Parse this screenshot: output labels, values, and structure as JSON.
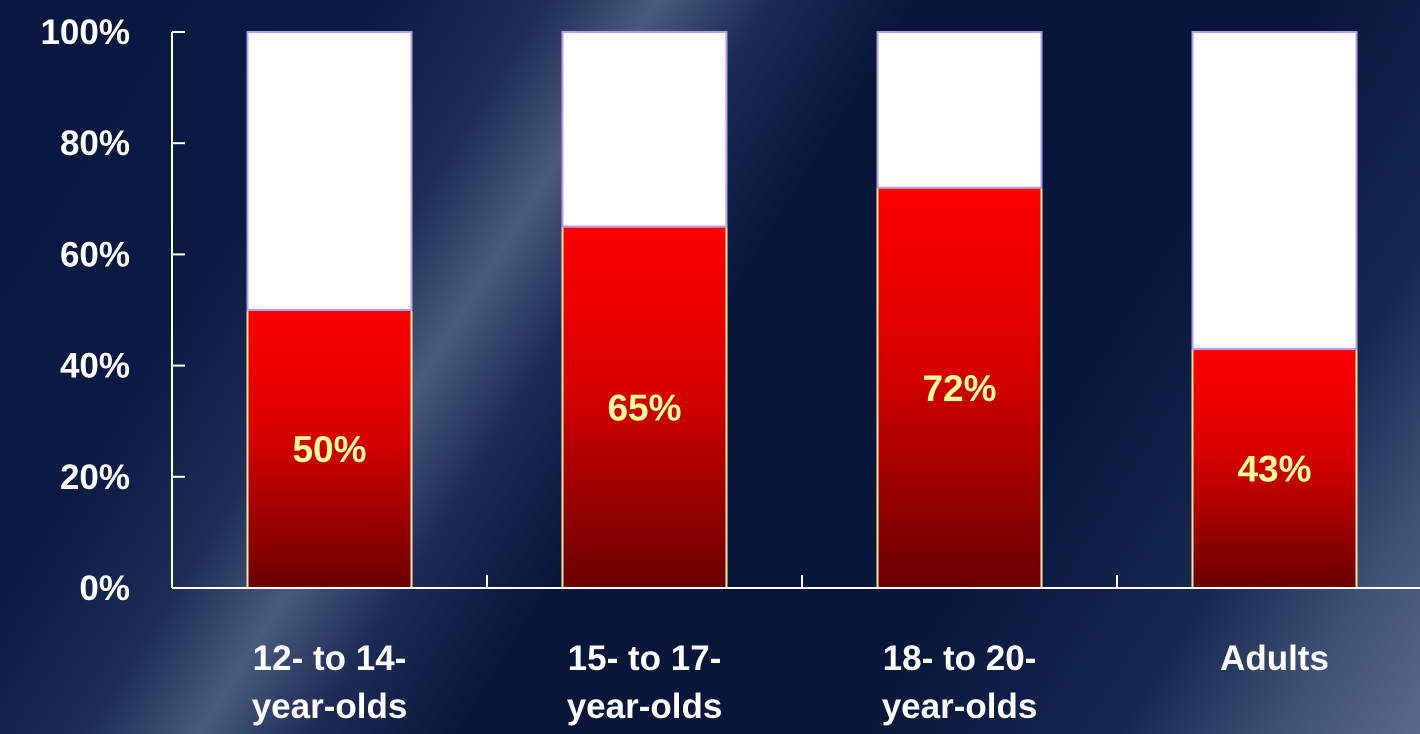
{
  "chart_data": {
    "type": "bar",
    "stacked": true,
    "categories": [
      [
        "12- to 14-",
        "year-olds"
      ],
      [
        "15- to 17-",
        "year-olds"
      ],
      [
        "18- to 20-",
        "year-olds"
      ],
      [
        "Adults"
      ]
    ],
    "series": [
      {
        "values": [
          50,
          65,
          72,
          43
        ],
        "color": "#e00000"
      },
      {
        "values": [
          50,
          35,
          28,
          57
        ],
        "color": "#ffffff"
      }
    ],
    "data_labels": [
      "50%",
      "65%",
      "72%",
      "43%"
    ],
    "y_ticks": [
      "0%",
      "20%",
      "40%",
      "60%",
      "80%",
      "100%"
    ],
    "ylim": [
      0,
      100
    ],
    "grid": false,
    "legend": "none",
    "title": "",
    "xlabel": "",
    "ylabel": ""
  }
}
